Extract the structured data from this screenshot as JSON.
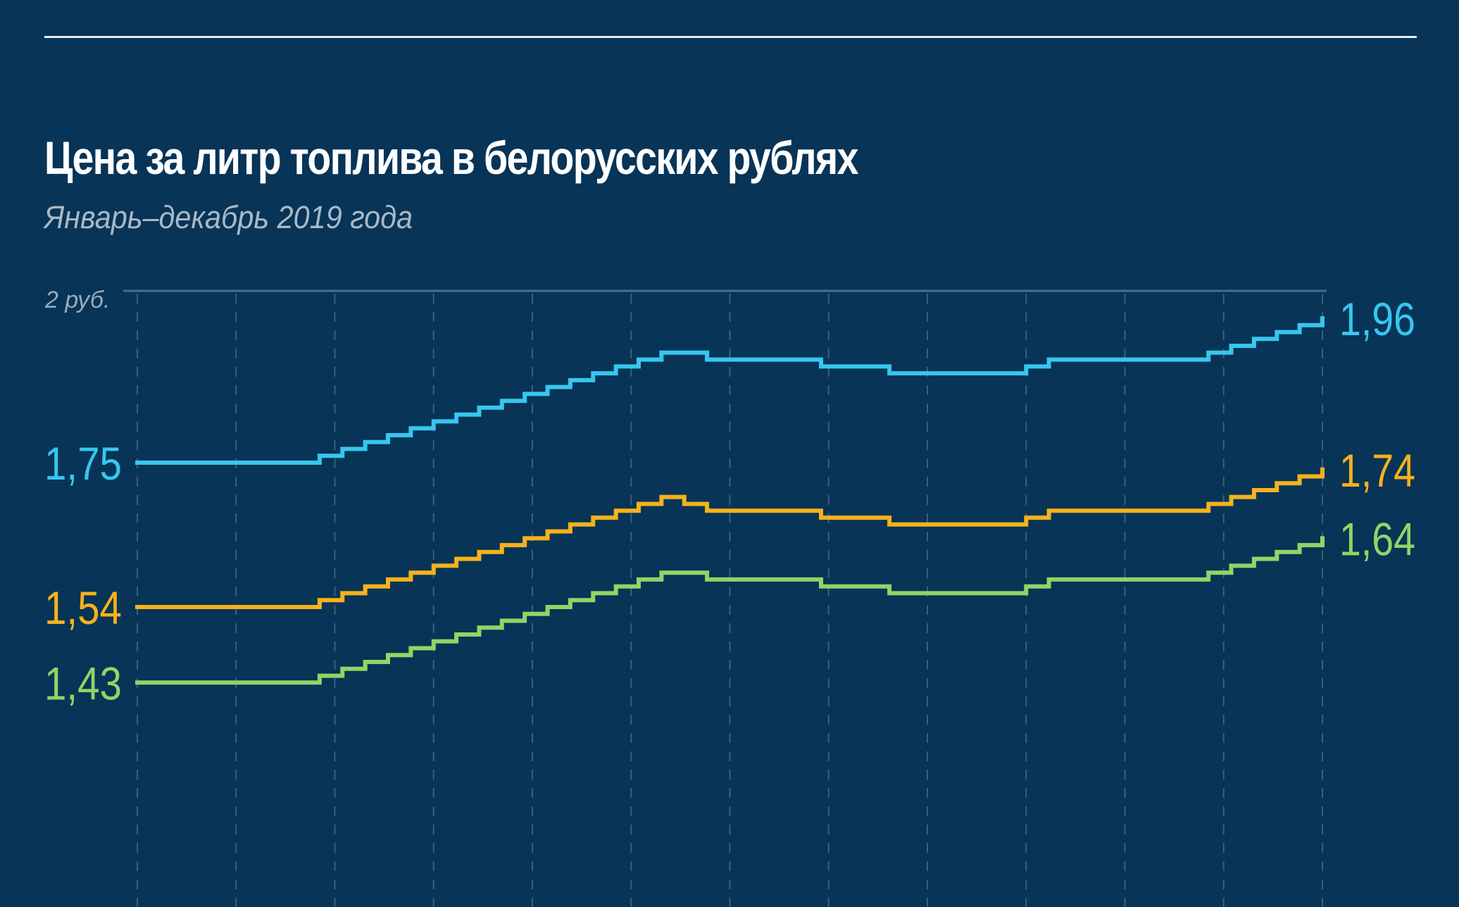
{
  "header": {
    "title": "Цена за литр топлива в белорусских рублях",
    "subtitle": "Январь–декабрь 2019 года"
  },
  "chart_data": {
    "type": "line",
    "step": true,
    "title": "Цена за литр топлива в белорусских рублях",
    "subtitle": "Январь–декабрь 2019 года",
    "y_top_label": "2 руб.",
    "ylim": [
      1.3,
      2.0
    ],
    "x_periods": 52,
    "grid": "vertical-dashed",
    "series": [
      {
        "color": "#37c6ee",
        "start_label": "1,75",
        "end_label": "1,96",
        "values": [
          1.75,
          1.75,
          1.75,
          1.75,
          1.75,
          1.75,
          1.75,
          1.75,
          1.76,
          1.77,
          1.78,
          1.79,
          1.8,
          1.81,
          1.82,
          1.83,
          1.84,
          1.85,
          1.86,
          1.87,
          1.88,
          1.89,
          1.9,
          1.91,
          1.91,
          1.9,
          1.9,
          1.9,
          1.9,
          1.9,
          1.89,
          1.89,
          1.89,
          1.88,
          1.88,
          1.88,
          1.88,
          1.88,
          1.88,
          1.89,
          1.9,
          1.9,
          1.9,
          1.9,
          1.9,
          1.9,
          1.9,
          1.91,
          1.92,
          1.93,
          1.94,
          1.95,
          1.96
        ]
      },
      {
        "color": "#f5b21b",
        "start_label": "1,54",
        "end_label": "1,74",
        "values": [
          1.54,
          1.54,
          1.54,
          1.54,
          1.54,
          1.54,
          1.54,
          1.54,
          1.55,
          1.56,
          1.57,
          1.58,
          1.59,
          1.6,
          1.61,
          1.62,
          1.63,
          1.64,
          1.65,
          1.66,
          1.67,
          1.68,
          1.69,
          1.7,
          1.69,
          1.68,
          1.68,
          1.68,
          1.68,
          1.68,
          1.67,
          1.67,
          1.67,
          1.66,
          1.66,
          1.66,
          1.66,
          1.66,
          1.66,
          1.67,
          1.68,
          1.68,
          1.68,
          1.68,
          1.68,
          1.68,
          1.68,
          1.69,
          1.7,
          1.71,
          1.72,
          1.73,
          1.74
        ]
      },
      {
        "color": "#8ed665",
        "start_label": "1,43",
        "end_label": "1,64",
        "values": [
          1.43,
          1.43,
          1.43,
          1.43,
          1.43,
          1.43,
          1.43,
          1.43,
          1.44,
          1.45,
          1.46,
          1.47,
          1.48,
          1.49,
          1.5,
          1.51,
          1.52,
          1.53,
          1.54,
          1.55,
          1.56,
          1.57,
          1.58,
          1.59,
          1.59,
          1.58,
          1.58,
          1.58,
          1.58,
          1.58,
          1.57,
          1.57,
          1.57,
          1.56,
          1.56,
          1.56,
          1.56,
          1.56,
          1.56,
          1.57,
          1.58,
          1.58,
          1.58,
          1.58,
          1.58,
          1.58,
          1.58,
          1.59,
          1.6,
          1.61,
          1.62,
          1.63,
          1.64
        ]
      }
    ]
  }
}
